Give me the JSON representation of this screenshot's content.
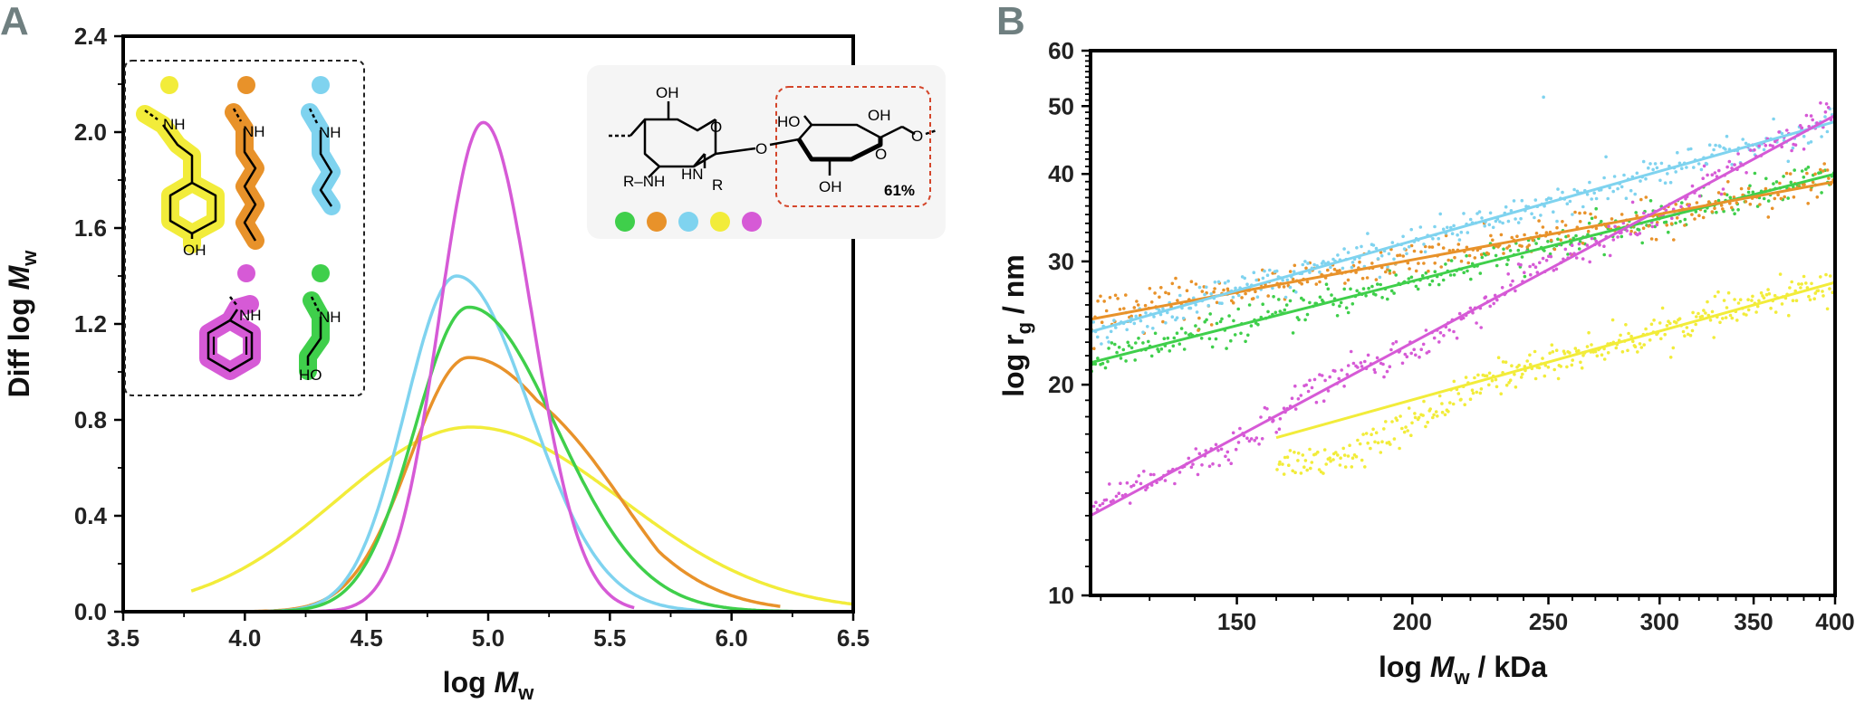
{
  "colors": {
    "yellow": "#f2ec3a",
    "orange": "#e8922a",
    "cyan": "#7fd3ef",
    "green": "#3fcf4b",
    "magenta": "#d65ad6",
    "red_box": "#d4452a"
  },
  "panel_labels": {
    "a": "A",
    "b": "B"
  },
  "inset": {
    "substituents": [
      {
        "name": "tyramine",
        "color": "yellow",
        "label_nh": "NH",
        "label_oh": "OH"
      },
      {
        "name": "hexylamine",
        "color": "orange",
        "label_nh": "NH"
      },
      {
        "name": "butylamine",
        "color": "cyan",
        "label_nh": "NH"
      },
      {
        "name": "aniline",
        "color": "magenta",
        "label_nh": "NH"
      },
      {
        "name": "ethanolamine",
        "color": "green",
        "label_nh": "NH",
        "label_oh": "HO"
      }
    ],
    "structure_labels": {
      "oh_top": "OH",
      "o_ring1": "O",
      "rnh": "R–NH",
      "hnr": "HN",
      "r": "R",
      "o_link": "O",
      "ho": "HO",
      "oh_right": "OH",
      "o_ring2": "O",
      "o_end": "O",
      "oh_bottom": "OH",
      "percent": "61%"
    },
    "legend_dot_order": [
      "green",
      "orange",
      "cyan",
      "yellow",
      "magenta"
    ]
  },
  "chart_data": [
    {
      "type": "line",
      "panel": "A",
      "xlabel": "log M_w",
      "ylabel": "Diff log M_w",
      "xlim": [
        3.5,
        6.5
      ],
      "ylim": [
        0.0,
        2.4
      ],
      "xticks": [
        "3.5",
        "4.0",
        "4.5",
        "5.0",
        "5.5",
        "6.0",
        "6.5"
      ],
      "yticks": [
        "0.0",
        "0.4",
        "0.8",
        "1.2",
        "1.6",
        "2.0",
        "2.4"
      ],
      "series": [
        {
          "name": "yellow",
          "color": "yellow",
          "peak": 4.93,
          "height": 0.77,
          "sigma_left": 0.55,
          "sigma_right": 0.62,
          "x_start": 3.78,
          "x_end": 6.5
        },
        {
          "name": "orange",
          "color": "orange",
          "peak": 4.92,
          "height": 1.06,
          "sigma_left": 0.24,
          "sigma_right": 0.46,
          "x_start": 3.75,
          "x_end": 6.2
        },
        {
          "name": "cyan",
          "color": "cyan",
          "peak": 4.87,
          "height": 1.4,
          "sigma_left": 0.21,
          "sigma_right": 0.3,
          "x_start": 3.6,
          "x_end": 6.3
        },
        {
          "name": "green",
          "color": "green",
          "peak": 4.92,
          "height": 1.27,
          "sigma_left": 0.22,
          "sigma_right": 0.36,
          "x_start": 3.6,
          "x_end": 6.3
        },
        {
          "name": "magenta",
          "color": "magenta",
          "peak": 4.98,
          "height": 2.04,
          "sigma_left": 0.18,
          "sigma_right": 0.2,
          "x_start": 4.25,
          "x_end": 5.6
        }
      ]
    },
    {
      "type": "scatter",
      "panel": "B",
      "xlabel": "log M_w / kDa",
      "ylabel": "log r_g / nm",
      "xscale": "log",
      "yscale": "log",
      "xlim": [
        118,
        400
      ],
      "ylim": [
        10,
        60
      ],
      "xticks": [
        "150",
        "200",
        "250",
        "300",
        "350",
        "400"
      ],
      "yticks": [
        "10",
        "20",
        "30",
        "40",
        "50",
        "60"
      ],
      "series": [
        {
          "name": "cyan",
          "color": "cyan",
          "x_range": [
            118,
            400
          ],
          "fit": [
            [
              118,
              23.8
            ],
            [
              400,
              47.5
            ]
          ]
        },
        {
          "name": "orange",
          "color": "orange",
          "x_range": [
            118,
            400
          ],
          "fit": [
            [
              118,
              24.8
            ],
            [
              400,
              39.0
            ]
          ]
        },
        {
          "name": "green",
          "color": "green",
          "x_range": [
            118,
            400
          ],
          "fit": [
            [
              118,
              21.5
            ],
            [
              400,
              40.0
            ]
          ]
        },
        {
          "name": "magenta",
          "color": "magenta",
          "x_range": [
            118,
            400
          ],
          "fit": [
            [
              118,
              13.0
            ],
            [
              400,
              48.5
            ]
          ]
        },
        {
          "name": "yellow",
          "color": "yellow",
          "x_range": [
            160,
            400
          ],
          "fit": [
            [
              160,
              16.8
            ],
            [
              400,
              28.0
            ]
          ]
        }
      ]
    }
  ]
}
